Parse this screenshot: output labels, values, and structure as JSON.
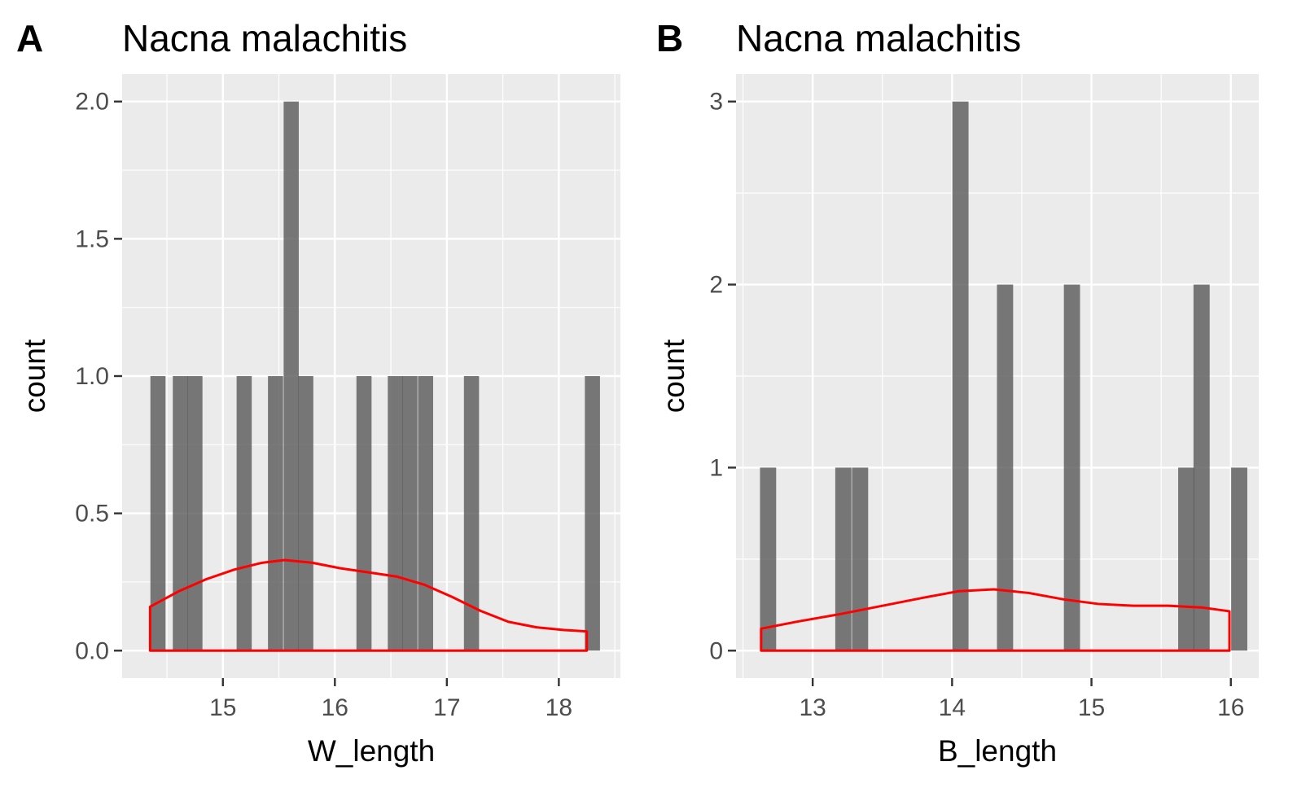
{
  "chart_data": [
    {
      "type": "bar",
      "panel_label": "A",
      "title": "Nacna malachitis",
      "xlabel": "W_length",
      "ylabel": "count",
      "xlim": [
        14.1,
        18.55
      ],
      "ylim": [
        -0.1,
        2.1
      ],
      "x_ticks": [
        15,
        16,
        17,
        18
      ],
      "x_tick_labels": [
        "15",
        "16",
        "17",
        "18"
      ],
      "x_minor_ticks": [
        14.5,
        15.5,
        16.5,
        17.5,
        18.5
      ],
      "y_ticks": [
        0,
        0.5,
        1.0,
        1.5,
        2.0
      ],
      "y_tick_labels": [
        "0.0",
        "0.5",
        "1.0",
        "1.5",
        "2.0"
      ],
      "y_minor_ticks": [
        0.25,
        0.75,
        1.25,
        1.75
      ],
      "bin_width": 0.135,
      "bins": [
        {
          "x": 14.42,
          "count": 1
        },
        {
          "x": 14.62,
          "count": 1
        },
        {
          "x": 14.75,
          "count": 1
        },
        {
          "x": 15.19,
          "count": 1
        },
        {
          "x": 15.47,
          "count": 1
        },
        {
          "x": 15.61,
          "count": 2
        },
        {
          "x": 15.74,
          "count": 1
        },
        {
          "x": 16.26,
          "count": 1
        },
        {
          "x": 16.54,
          "count": 1
        },
        {
          "x": 16.67,
          "count": 1
        },
        {
          "x": 16.81,
          "count": 1
        },
        {
          "x": 17.22,
          "count": 1
        },
        {
          "x": 18.3,
          "count": 1
        }
      ],
      "density_color": "#ff0000",
      "bar_color": "#595959",
      "density": {
        "x": [
          14.35,
          14.6,
          14.85,
          15.1,
          15.35,
          15.55,
          15.8,
          16.05,
          16.3,
          16.55,
          16.8,
          17.05,
          17.3,
          17.55,
          17.8,
          18.05,
          18.25
        ],
        "y": [
          0.16,
          0.215,
          0.26,
          0.295,
          0.32,
          0.33,
          0.32,
          0.3,
          0.285,
          0.27,
          0.24,
          0.195,
          0.145,
          0.105,
          0.085,
          0.075,
          0.07
        ]
      }
    },
    {
      "type": "bar",
      "panel_label": "B",
      "title": "Nacna malachitis",
      "xlabel": "B_length",
      "ylabel": "count",
      "xlim": [
        12.45,
        16.2
      ],
      "ylim": [
        -0.15,
        3.15
      ],
      "x_ticks": [
        13,
        14,
        15,
        16
      ],
      "x_tick_labels": [
        "13",
        "14",
        "15",
        "16"
      ],
      "x_minor_ticks": [
        12.5,
        13.5,
        14.5,
        15.5
      ],
      "y_ticks": [
        0,
        1,
        2,
        3
      ],
      "y_tick_labels": [
        "0",
        "1",
        "2",
        "3"
      ],
      "y_minor_ticks": [
        0.5,
        1.5,
        2.5
      ],
      "bin_width": 0.116,
      "bins": [
        {
          "x": 12.68,
          "count": 1
        },
        {
          "x": 13.22,
          "count": 1
        },
        {
          "x": 13.34,
          "count": 1
        },
        {
          "x": 14.06,
          "count": 3
        },
        {
          "x": 14.38,
          "count": 2
        },
        {
          "x": 14.86,
          "count": 2
        },
        {
          "x": 15.68,
          "count": 1
        },
        {
          "x": 15.79,
          "count": 2
        },
        {
          "x": 16.06,
          "count": 1
        }
      ],
      "density_color": "#ff0000",
      "bar_color": "#595959",
      "density": {
        "x": [
          12.63,
          12.9,
          13.2,
          13.5,
          13.8,
          14.05,
          14.3,
          14.55,
          14.8,
          15.05,
          15.3,
          15.55,
          15.8,
          15.99
        ],
        "y": [
          0.12,
          0.16,
          0.2,
          0.245,
          0.29,
          0.325,
          0.335,
          0.315,
          0.28,
          0.255,
          0.245,
          0.245,
          0.235,
          0.215
        ]
      }
    }
  ]
}
